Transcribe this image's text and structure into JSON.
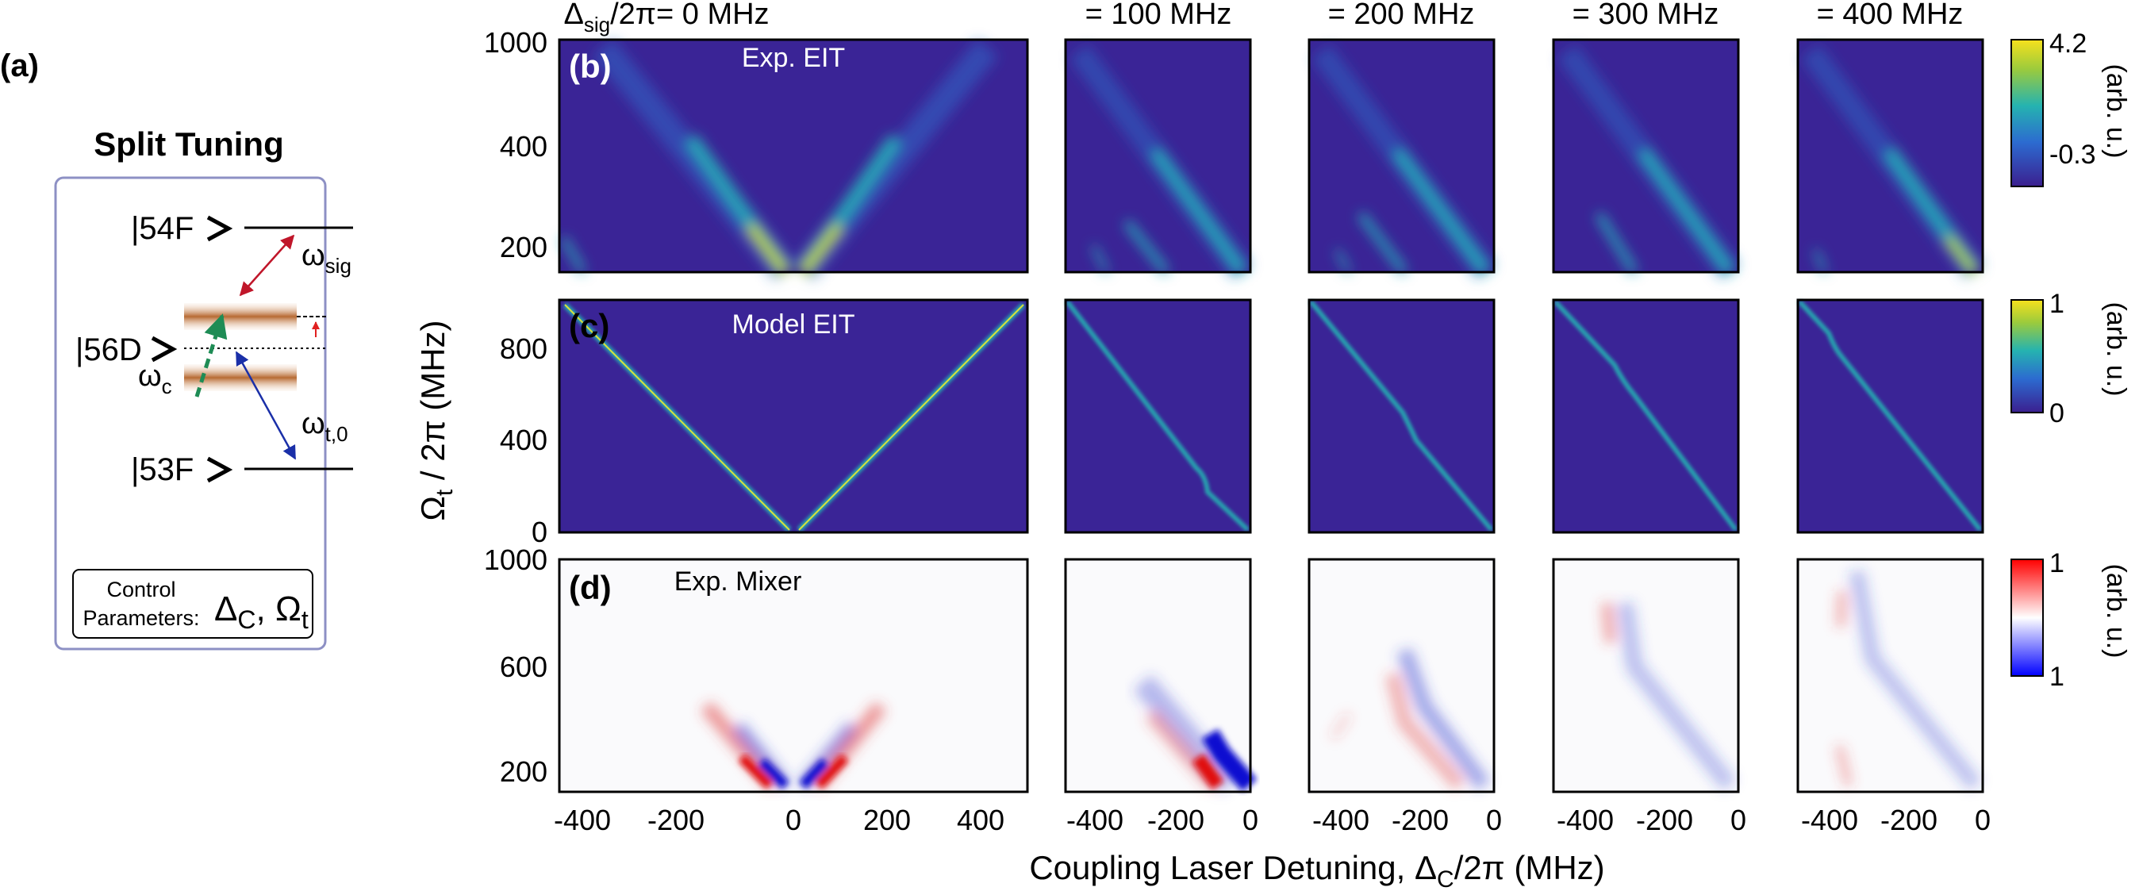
{
  "panel_labels": {
    "a": "(a)",
    "b": "(b)",
    "c": "(c)",
    "d": "(d)"
  },
  "diagram": {
    "title": "Split Tuning",
    "level_54F": "|54F",
    "level_56D": "|56D",
    "level_53F": "|53F",
    "omega_sig": {
      "base": "ω",
      "sub": "sig"
    },
    "omega_c": {
      "base": "ω",
      "sub": "c"
    },
    "omega_t0": {
      "base": "ω",
      "sub": "t,0"
    },
    "control_line1": "Control",
    "control_line2": "Parameters:",
    "control_delta": {
      "base": "Δ",
      "sub": "C"
    },
    "control_sep": ", ",
    "control_omega": {
      "base": "Ω",
      "sub": "t"
    }
  },
  "column_titles": {
    "first_prefix": "Δ",
    "first_sub": "sig",
    "first_rest": "/2π= 0 MHz",
    "others": [
      "= 100 MHz",
      "= 200 MHz",
      "= 300 MHz",
      "= 400 MHz"
    ]
  },
  "row_annotations": {
    "b": "Exp. EIT",
    "c": "Model EIT",
    "d": "Exp. Mixer"
  },
  "ylabel": {
    "base": "Ω",
    "sub": "t",
    "rest": " / 2π (MHz)"
  },
  "xlabel": {
    "pre": "Coupling Laser Detuning, Δ",
    "sub": "C",
    "rest": "/2π (MHz)"
  },
  "colorbars": [
    {
      "row": "b",
      "max_label": "4.2",
      "min_label": "-0.3",
      "unit": "(arb. u.)",
      "colors": [
        "#3b1f8f",
        "#2c6bd0",
        "#25b3b0",
        "#9ccb3c",
        "#f6e11d"
      ]
    },
    {
      "row": "c",
      "max_label": "1",
      "min_label": "0",
      "unit": "(arb. u.)",
      "colors": [
        "#3b1f8f",
        "#2c6bd0",
        "#25b3b0",
        "#9ccb3c",
        "#f6e11d"
      ]
    },
    {
      "row": "d",
      "max_label": "1",
      "min_label": "1",
      "unit": "(arb. u.)",
      "colors": [
        "#0000ff",
        "#ffffff",
        "#ff0000"
      ]
    }
  ],
  "axes": {
    "col0_xticks": [
      "-400",
      "-200",
      "0",
      "200",
      "400"
    ],
    "col_other_xticks": [
      "-400",
      "-200",
      "0"
    ],
    "row_b_yticks": [
      "1000",
      "400",
      "200"
    ],
    "row_c_yticks": [
      "800",
      "400",
      "0"
    ],
    "row_d_yticks": [
      "1000",
      "600",
      "200"
    ]
  },
  "chart_data": [
    {
      "type": "heatmap",
      "panel": "Exp. EIT",
      "columns_delta_sig_MHz": [
        0,
        100,
        200,
        300,
        400
      ],
      "xlim": [
        -500,
        500
      ],
      "ylim": [
        100,
        1000
      ],
      "description": "EIT resonance ridges"
    },
    {
      "type": "heatmap",
      "panel": "Model EIT",
      "columns_delta_sig_MHz": [
        0,
        100,
        200,
        300,
        400
      ],
      "xlim": [
        -500,
        500
      ],
      "ylim": [
        0,
        1000
      ],
      "description": "Model EIT lines"
    },
    {
      "type": "heatmap",
      "panel": "Exp. Mixer",
      "columns_delta_sig_MHz": [
        0,
        100,
        200,
        300,
        400
      ],
      "xlim": [
        -500,
        500
      ],
      "ylim": [
        100,
        1000
      ],
      "description": "Mixer signal"
    }
  ]
}
